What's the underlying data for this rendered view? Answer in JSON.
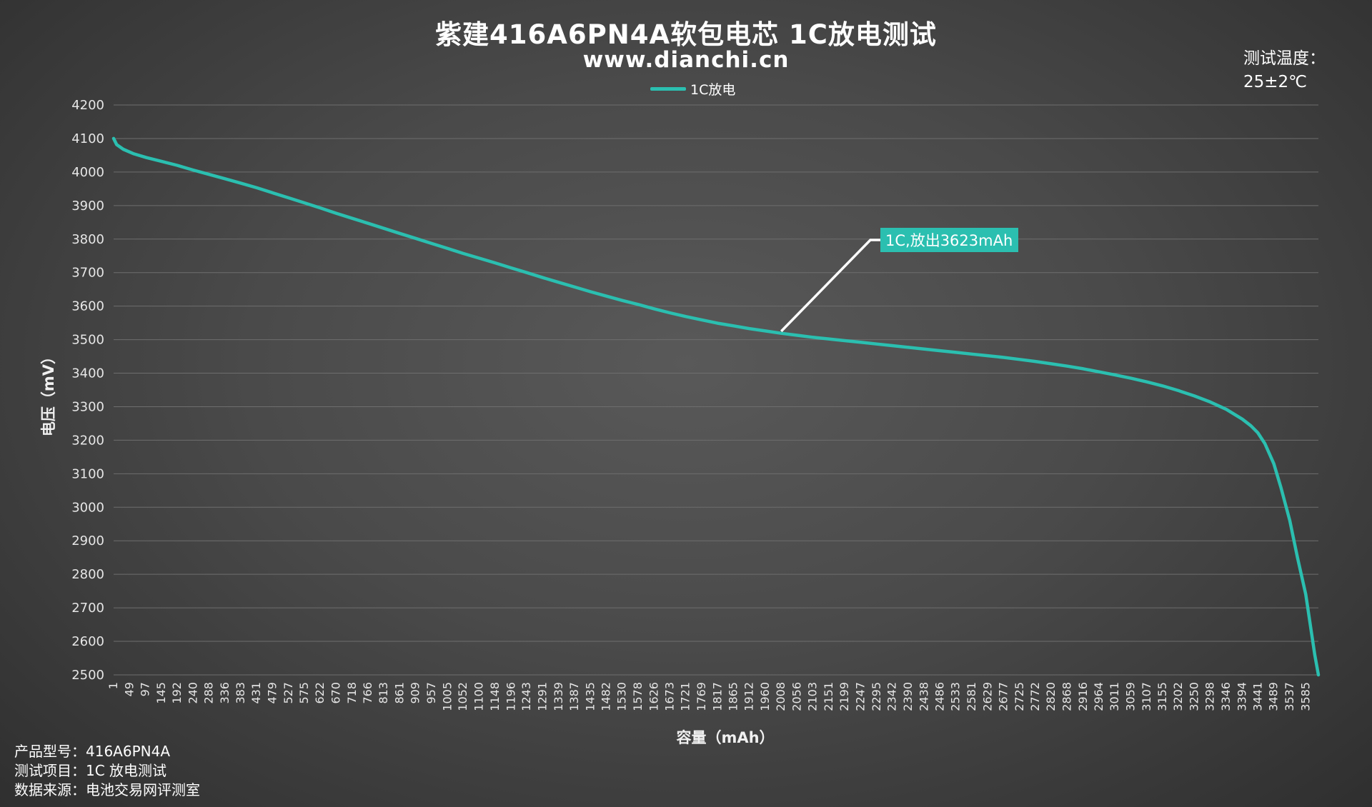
{
  "chart_title": "紫建416A6PN4A软包电芯 1C放电测试",
  "chart_subtitle": "www.dianchi.cn",
  "temperature": {
    "label": "测试温度：",
    "value": "25±2℃"
  },
  "footer": {
    "model": "产品型号：416A6PN4A",
    "test_item": "测试项目：1C 放电测试",
    "source": "数据来源：电池交易网评测室"
  },
  "colors": {
    "series": "#2bbfb0",
    "grid": "#6e6e6e",
    "annotation_box": "#2bbfb0",
    "leader_line": "#ffffff"
  },
  "chart_data": {
    "type": "line",
    "xlabel": "容量（mAh）",
    "ylabel": "电压（mV）",
    "ylim": [
      2500,
      4200
    ],
    "yticks": [
      4200,
      4100,
      4000,
      3900,
      3800,
      3700,
      3600,
      3500,
      3400,
      3300,
      3200,
      3100,
      3000,
      2900,
      2800,
      2700,
      2600,
      2500
    ],
    "xlim": [
      1,
      3623
    ],
    "xticks": [
      1,
      49,
      97,
      145,
      192,
      240,
      288,
      336,
      383,
      431,
      479,
      527,
      575,
      622,
      670,
      718,
      766,
      813,
      861,
      909,
      957,
      1005,
      1052,
      1100,
      1148,
      1196,
      1243,
      1291,
      1339,
      1387,
      1435,
      1482,
      1530,
      1578,
      1626,
      1673,
      1721,
      1769,
      1817,
      1865,
      1912,
      1960,
      2008,
      2056,
      2103,
      2151,
      2199,
      2247,
      2295,
      2342,
      2390,
      2438,
      2486,
      2533,
      2581,
      2629,
      2677,
      2725,
      2772,
      2820,
      2868,
      2916,
      2964,
      3011,
      3059,
      3107,
      3155,
      3202,
      3250,
      3298,
      3346,
      3394,
      3441,
      3489,
      3537,
      3585
    ],
    "grid": "horizontal",
    "legend_position": "top-center",
    "series": [
      {
        "name": "1C放电",
        "points": [
          [
            1,
            4100
          ],
          [
            10,
            4082
          ],
          [
            30,
            4068
          ],
          [
            60,
            4055
          ],
          [
            100,
            4043
          ],
          [
            145,
            4032
          ],
          [
            192,
            4020
          ],
          [
            240,
            4006
          ],
          [
            288,
            3993
          ],
          [
            336,
            3980
          ],
          [
            383,
            3967
          ],
          [
            431,
            3953
          ],
          [
            479,
            3938
          ],
          [
            527,
            3923
          ],
          [
            575,
            3908
          ],
          [
            622,
            3893
          ],
          [
            670,
            3877
          ],
          [
            718,
            3862
          ],
          [
            766,
            3847
          ],
          [
            813,
            3832
          ],
          [
            861,
            3817
          ],
          [
            909,
            3802
          ],
          [
            957,
            3787
          ],
          [
            1005,
            3772
          ],
          [
            1052,
            3757
          ],
          [
            1100,
            3743
          ],
          [
            1148,
            3729
          ],
          [
            1196,
            3714
          ],
          [
            1243,
            3700
          ],
          [
            1291,
            3685
          ],
          [
            1339,
            3671
          ],
          [
            1387,
            3657
          ],
          [
            1435,
            3643
          ],
          [
            1482,
            3630
          ],
          [
            1530,
            3617
          ],
          [
            1578,
            3605
          ],
          [
            1626,
            3592
          ],
          [
            1673,
            3580
          ],
          [
            1721,
            3569
          ],
          [
            1769,
            3559
          ],
          [
            1817,
            3549
          ],
          [
            1865,
            3541
          ],
          [
            1912,
            3533
          ],
          [
            1960,
            3526
          ],
          [
            2008,
            3519
          ],
          [
            2056,
            3513
          ],
          [
            2103,
            3507
          ],
          [
            2151,
            3502
          ],
          [
            2199,
            3497
          ],
          [
            2247,
            3492
          ],
          [
            2295,
            3487
          ],
          [
            2342,
            3482
          ],
          [
            2390,
            3477
          ],
          [
            2438,
            3472
          ],
          [
            2486,
            3467
          ],
          [
            2533,
            3462
          ],
          [
            2581,
            3457
          ],
          [
            2629,
            3452
          ],
          [
            2677,
            3447
          ],
          [
            2725,
            3441
          ],
          [
            2772,
            3435
          ],
          [
            2820,
            3428
          ],
          [
            2868,
            3421
          ],
          [
            2916,
            3413
          ],
          [
            2964,
            3404
          ],
          [
            3011,
            3395
          ],
          [
            3059,
            3385
          ],
          [
            3107,
            3374
          ],
          [
            3155,
            3362
          ],
          [
            3202,
            3348
          ],
          [
            3250,
            3332
          ],
          [
            3298,
            3314
          ],
          [
            3346,
            3292
          ],
          [
            3394,
            3263
          ],
          [
            3420,
            3243
          ],
          [
            3441,
            3222
          ],
          [
            3462,
            3190
          ],
          [
            3489,
            3130
          ],
          [
            3510,
            3060
          ],
          [
            3537,
            2960
          ],
          [
            3560,
            2850
          ],
          [
            3585,
            2740
          ],
          [
            3600,
            2640
          ],
          [
            3612,
            2560
          ],
          [
            3623,
            2500
          ]
        ]
      }
    ],
    "annotation": {
      "text": "1C,放出3623mAh",
      "anchor": [
        2008,
        3525
      ]
    }
  }
}
